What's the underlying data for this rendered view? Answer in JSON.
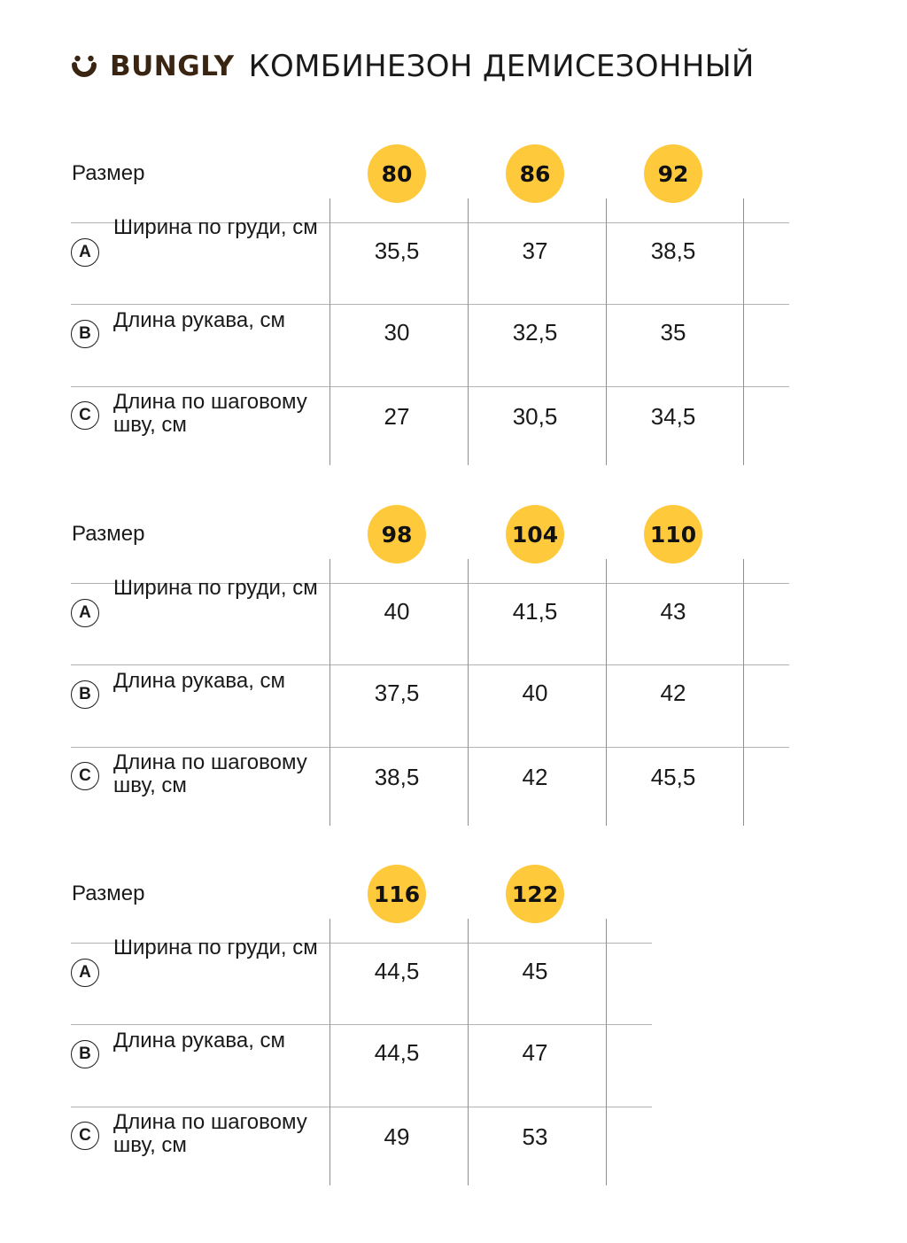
{
  "brand": {
    "logo_icon": "bungly-smile-logo-icon",
    "name": "BUNGLY",
    "color": "#3a2512"
  },
  "title": "КОМБИНЕЗОН ДЕМИСЕЗОННЫЙ",
  "accent_color": "#ffc93c",
  "size_label": "Размер",
  "row_labels": [
    {
      "icon": "A",
      "text": "Ширина по груди, см"
    },
    {
      "icon": "B",
      "text": "Длина рукава, см"
    },
    {
      "icon": "C",
      "text": "Длина по шаговому шву, см"
    }
  ],
  "tables": [
    {
      "sizes": [
        "80",
        "86",
        "92"
      ],
      "rows": [
        [
          "35,5",
          "37",
          "38,5"
        ],
        [
          "30",
          "32,5",
          "35"
        ],
        [
          "27",
          "30,5",
          "34,5"
        ]
      ]
    },
    {
      "sizes": [
        "98",
        "104",
        "110"
      ],
      "rows": [
        [
          "40",
          "41,5",
          "43"
        ],
        [
          "37,5",
          "40",
          "42"
        ],
        [
          "38,5",
          "42",
          "45,5"
        ]
      ]
    },
    {
      "sizes": [
        "116",
        "122"
      ],
      "rows": [
        [
          "44,5",
          "45"
        ],
        [
          "44,5",
          "47"
        ],
        [
          "49",
          "53"
        ]
      ]
    }
  ]
}
